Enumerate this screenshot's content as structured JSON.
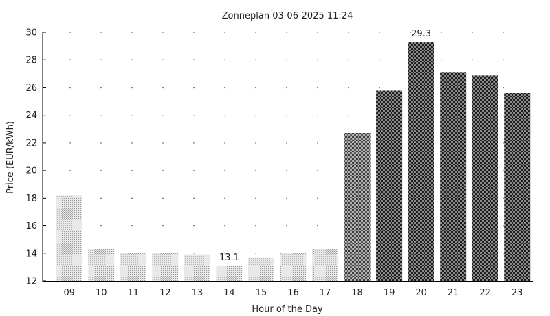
{
  "chart_data": {
    "type": "bar",
    "title": "Zonneplan 03-06-2025 11:24",
    "xlabel": "Hour of the Day",
    "ylabel": "Price (EUR/kWh)",
    "ylim": [
      12,
      30
    ],
    "yticks": [
      12,
      14,
      16,
      18,
      20,
      22,
      24,
      26,
      28,
      30
    ],
    "grid": true,
    "categories": [
      "09",
      "10",
      "11",
      "12",
      "13",
      "14",
      "15",
      "16",
      "17",
      "18",
      "19",
      "20",
      "21",
      "22",
      "23"
    ],
    "values": [
      18.2,
      14.3,
      14.0,
      14.0,
      13.9,
      13.1,
      13.7,
      14.0,
      14.3,
      22.7,
      25.8,
      29.3,
      27.1,
      26.9,
      25.6
    ],
    "annotations": [
      {
        "category": "14",
        "text": "13.1"
      },
      {
        "category": "20",
        "text": "29.3"
      }
    ],
    "colors": {
      "light": "#d2d2d2",
      "light_medium": "#bdbdbd",
      "medium": "#6a6a6a",
      "dark": "#4a4a4a",
      "axis": "#000000"
    }
  }
}
